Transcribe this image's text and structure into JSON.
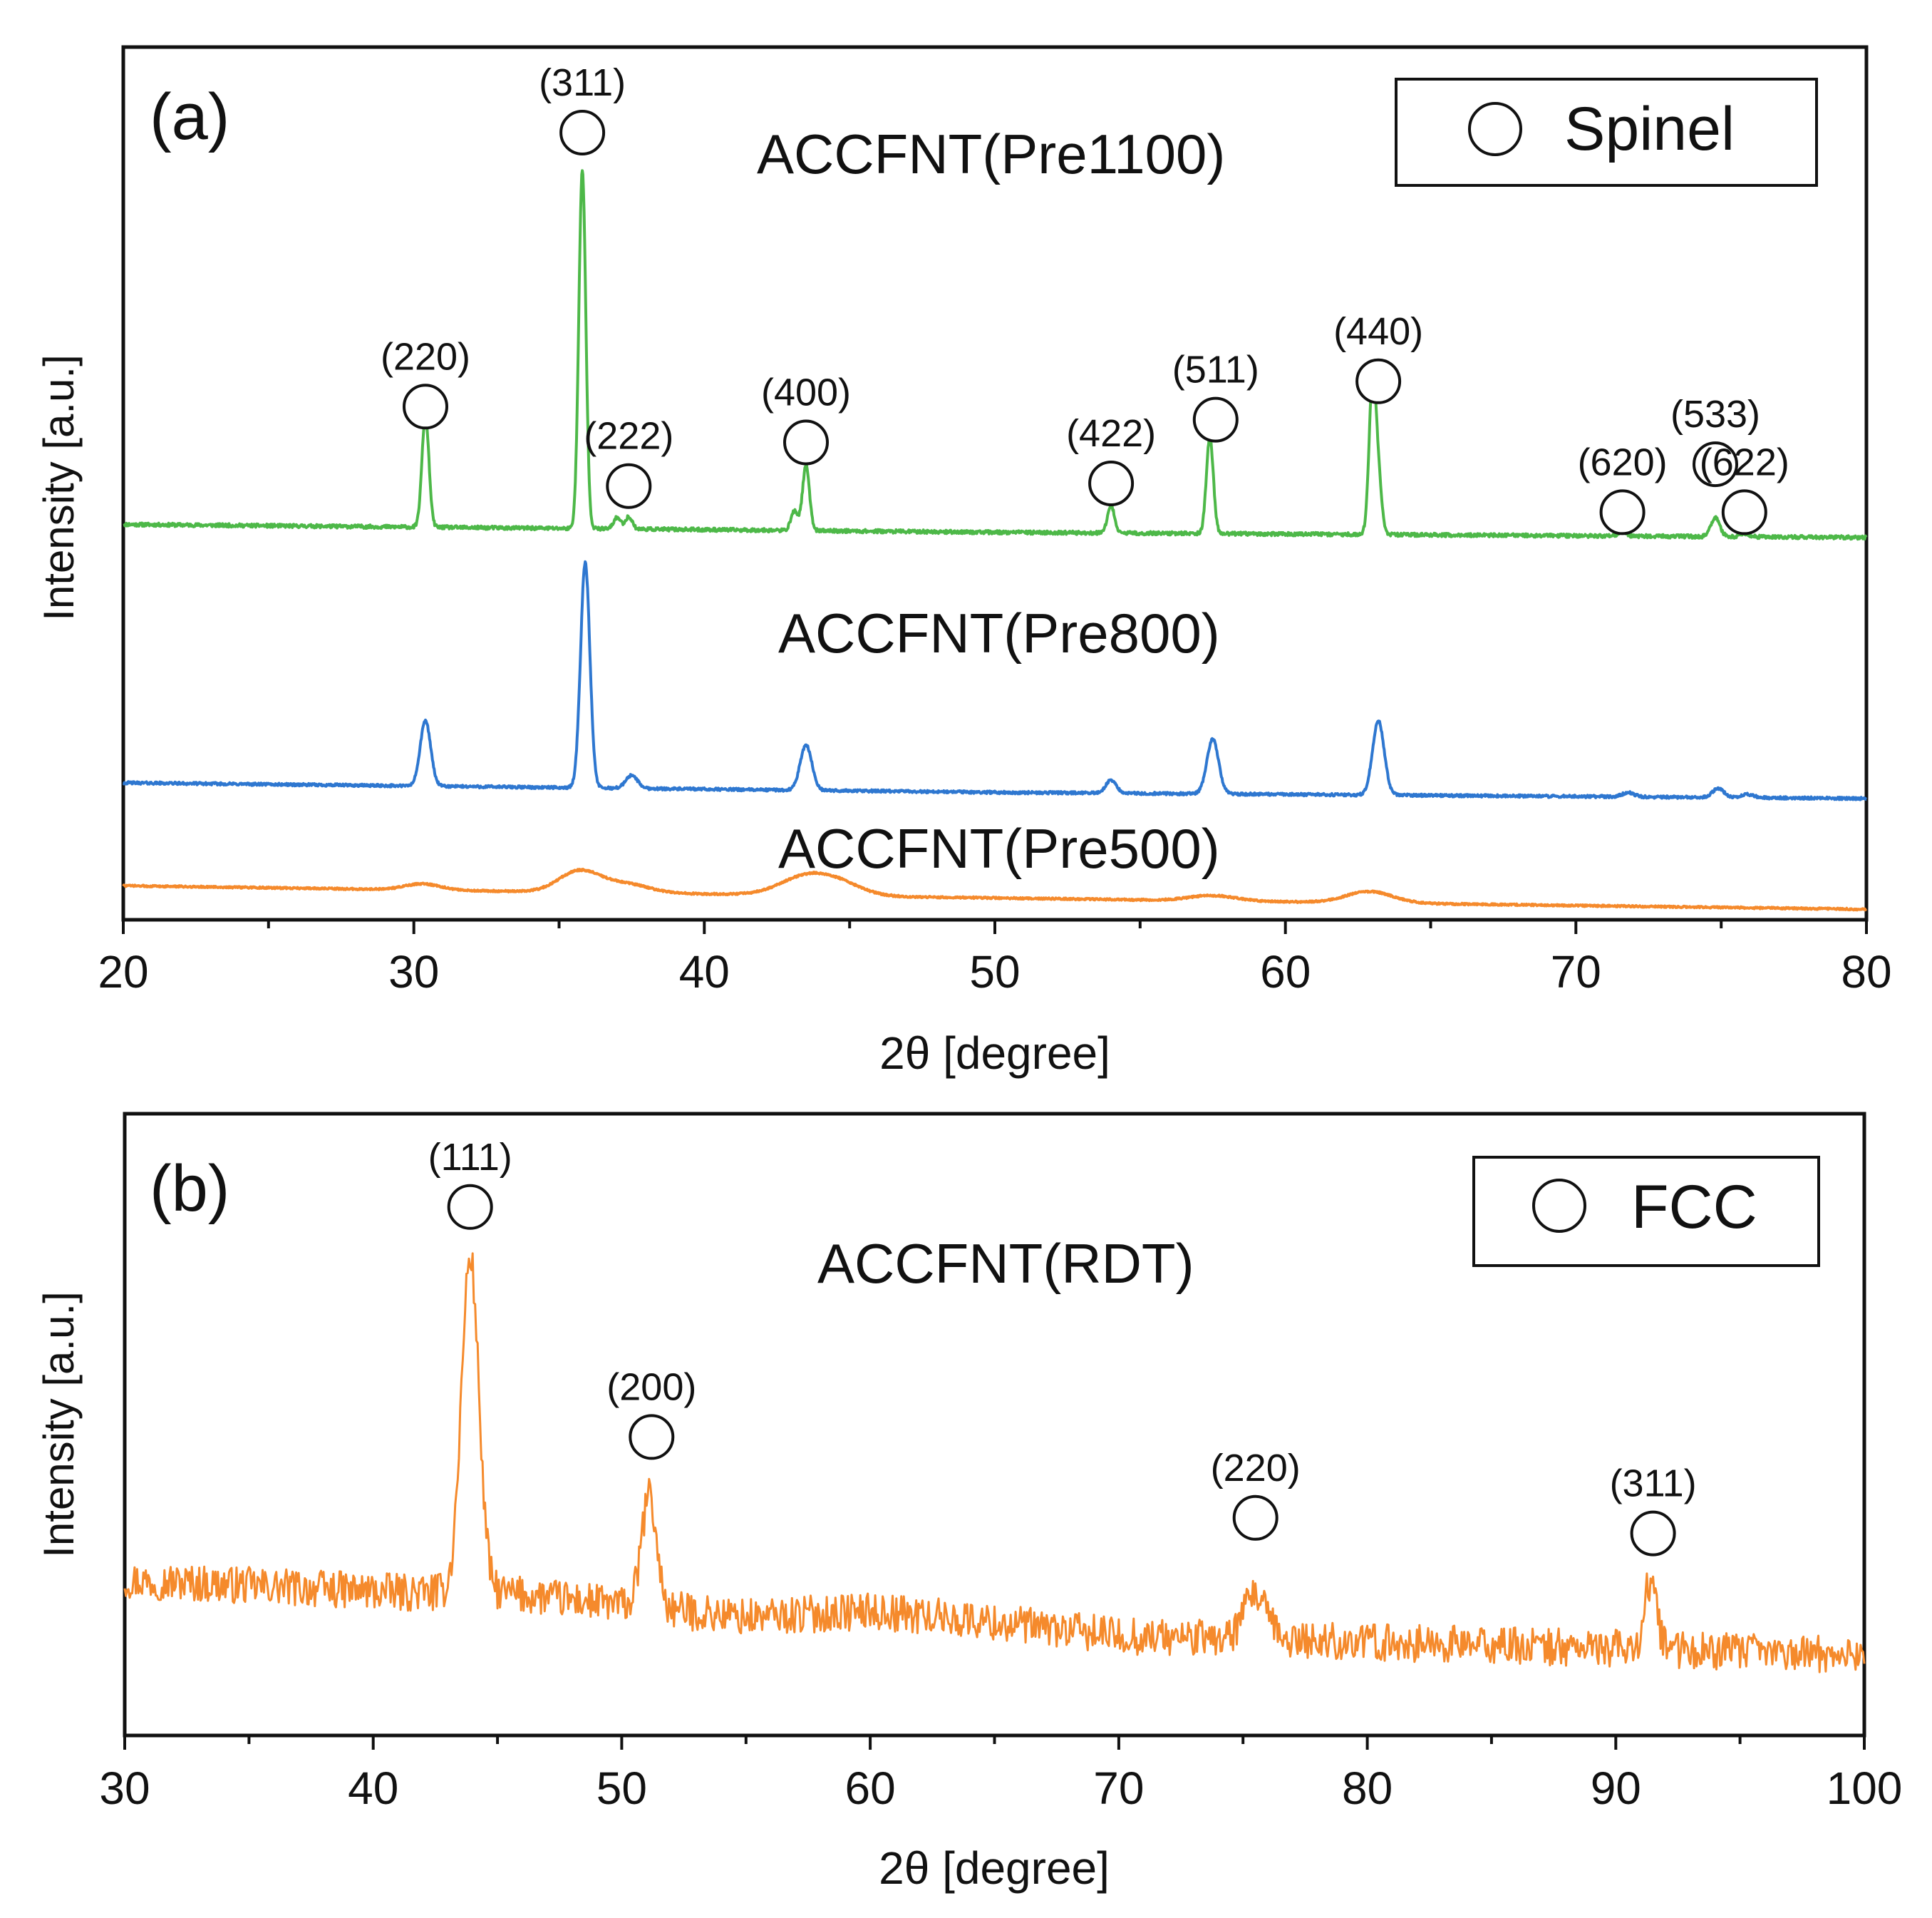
{
  "chart_data": [
    {
      "type": "line",
      "panel": "(a)",
      "xlabel": "2θ [degree]",
      "ylabel": "Intensity [a.u.]",
      "xlim": [
        20,
        80
      ],
      "ylim": [
        0,
        100
      ],
      "xticks": [
        20,
        30,
        40,
        50,
        60,
        70,
        80
      ],
      "legend": {
        "label": "Spinel",
        "symbol": "open-circle",
        "placement": "top-right"
      },
      "series": [
        {
          "name": "ACCFNT(Pre1100)",
          "color": "#4db848",
          "baseline": [
            [
              20,
              45.3
            ],
            [
              50,
              44.4
            ],
            [
              80,
              43.8
            ]
          ],
          "noise": 0.2,
          "peaks": [
            [
              30.4,
              12.8,
              0.12
            ],
            [
              35.8,
              41.0,
              0.12
            ],
            [
              37.0,
              1.3,
              0.12
            ],
            [
              37.4,
              1.4,
              0.12
            ],
            [
              43.1,
              2.2,
              0.12
            ],
            [
              43.5,
              7.4,
              0.12
            ],
            [
              54.0,
              3.1,
              0.12
            ],
            [
              57.4,
              11.0,
              0.12
            ],
            [
              63.0,
              17.2,
              0.12
            ],
            [
              63.2,
              5.5,
              0.12
            ],
            [
              71.6,
              0.6,
              0.12
            ],
            [
              74.8,
              2.2,
              0.15
            ],
            [
              75.8,
              0.4,
              0.15
            ]
          ],
          "peak_labels": [
            {
              "x": 30.4,
              "y": 58.8,
              "label": "(220)"
            },
            {
              "x": 35.8,
              "y": 90.2,
              "label": "(311)"
            },
            {
              "x": 37.4,
              "y": 49.7,
              "label": "(222)"
            },
            {
              "x": 43.5,
              "y": 54.7,
              "label": "(400)"
            },
            {
              "x": 54.0,
              "y": 50.0,
              "label": "(422)"
            },
            {
              "x": 57.6,
              "y": 57.3,
              "label": "(511)"
            },
            {
              "x": 63.2,
              "y": 61.7,
              "label": "(440)"
            },
            {
              "x": 71.6,
              "y": 46.7,
              "label": "(620)"
            },
            {
              "x": 74.8,
              "y": 52.2,
              "label": "(533)"
            },
            {
              "x": 75.8,
              "y": 46.7,
              "label": "(622)"
            }
          ]
        },
        {
          "name": "ACCFNT(Pre800)",
          "color": "#2e77d0",
          "baseline": [
            [
              20,
              15.7
            ],
            [
              50,
              14.6
            ],
            [
              80,
              13.9
            ]
          ],
          "noise": 0.15,
          "peaks": [
            [
              30.4,
              7.5,
              0.18
            ],
            [
              35.9,
              25.8,
              0.16
            ],
            [
              37.5,
              1.5,
              0.2
            ],
            [
              43.5,
              5.2,
              0.2
            ],
            [
              54.0,
              1.5,
              0.18
            ],
            [
              57.5,
              6.3,
              0.2
            ],
            [
              63.2,
              8.5,
              0.2
            ],
            [
              71.8,
              0.5,
              0.2
            ],
            [
              74.9,
              1.0,
              0.2
            ],
            [
              75.9,
              0.4,
              0.2
            ]
          ]
        },
        {
          "name": "ACCFNT(Pre500)",
          "color": "#f58a2c",
          "baseline": [
            [
              20,
              3.9
            ],
            [
              50,
              2.5
            ],
            [
              80,
              1.2
            ]
          ],
          "noise": 0.1,
          "peaks": [
            [
              30.3,
              0.7,
              0.6
            ],
            [
              35.7,
              2.4,
              0.7
            ],
            [
              37.3,
              1.0,
              0.8
            ],
            [
              43.5,
              2.1,
              0.9
            ],
            [
              44.7,
              1.1,
              0.8
            ],
            [
              57.5,
              0.6,
              0.8
            ],
            [
              62.9,
              1.3,
              0.8
            ]
          ]
        }
      ]
    },
    {
      "type": "line",
      "panel": "(b)",
      "xlabel": "2θ [degree]",
      "ylabel": "Intensity [a.u.]",
      "xlim": [
        30,
        100
      ],
      "ylim": [
        0,
        100
      ],
      "xticks": [
        30,
        40,
        50,
        60,
        70,
        80,
        90,
        100
      ],
      "legend": {
        "label": "FCC",
        "symbol": "open-circle",
        "placement": "top-right"
      },
      "series": [
        {
          "name": "ACCFNT(RDT)",
          "color": "#f58a2c",
          "baseline": [
            [
              30,
              25.0
            ],
            [
              41,
              23.0
            ],
            [
              45,
              23.0
            ],
            [
              55,
              19.0
            ],
            [
              60,
              20.0
            ],
            [
              63,
              19.0
            ],
            [
              70,
              16.0
            ],
            [
              80,
              15.0
            ],
            [
              100,
              13.0
            ]
          ],
          "noise": 3.0,
          "peaks": [
            [
              43.9,
              54.0,
              0.35
            ],
            [
              51.1,
              18.0,
              0.3
            ],
            [
              75.5,
              7.0,
              0.45
            ],
            [
              91.4,
              11.0,
              0.25
            ]
          ],
          "peak_labels": [
            {
              "x": 43.9,
              "y": 85.0,
              "label": "(111)"
            },
            {
              "x": 51.2,
              "y": 48.0,
              "label": "(200)"
            },
            {
              "x": 75.5,
              "y": 35.0,
              "label": "(220)"
            },
            {
              "x": 91.5,
              "y": 32.5,
              "label": "(311)"
            }
          ]
        }
      ]
    }
  ]
}
